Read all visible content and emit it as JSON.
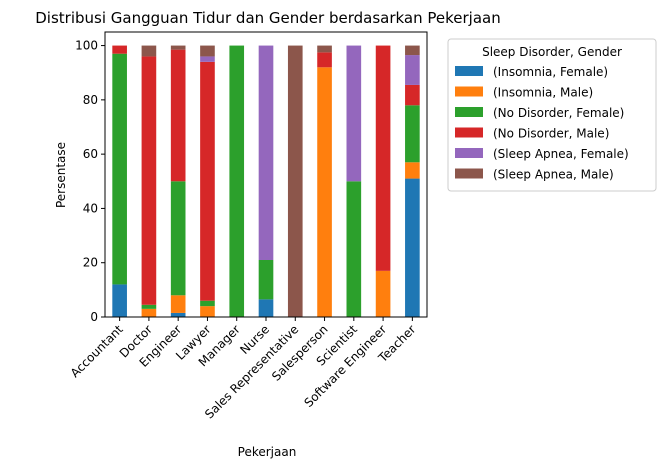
{
  "chart_data": {
    "type": "bar",
    "stacked": true,
    "title": "Distribusi Gangguan Tidur dan Gender berdasarkan Pekerjaan",
    "xlabel": "Pekerjaan",
    "ylabel": "Persentase",
    "ylim": [
      0,
      105
    ],
    "yticks": [
      0,
      20,
      40,
      60,
      80,
      100
    ],
    "grid": false,
    "legend_position": "outside-right",
    "legend_title": "Sleep Disorder, Gender",
    "categories": [
      "Accountant",
      "Doctor",
      "Engineer",
      "Lawyer",
      "Manager",
      "Nurse",
      "Sales Representative",
      "Salesperson",
      "Scientist",
      "Software Engineer",
      "Teacher"
    ],
    "series": [
      {
        "name": "(Insomnia, Female)",
        "color": "#1f77b4",
        "values": [
          12,
          0,
          1.5,
          0,
          0,
          6.5,
          0,
          0,
          0,
          0,
          51
        ]
      },
      {
        "name": "(Insomnia, Male)",
        "color": "#ff7f0e",
        "values": [
          0,
          3,
          6.5,
          4,
          0,
          0,
          0,
          92,
          0,
          17,
          6
        ]
      },
      {
        "name": "(No Disorder, Female)",
        "color": "#2ca02c",
        "values": [
          85,
          1.5,
          42,
          2,
          100,
          14.5,
          0,
          0,
          50,
          0,
          21
        ]
      },
      {
        "name": "(No Disorder, Male)",
        "color": "#d62728",
        "values": [
          3,
          91.5,
          48.5,
          88,
          0,
          0,
          0,
          5.5,
          0,
          83,
          7.5
        ]
      },
      {
        "name": "(Sleep Apnea, Female)",
        "color": "#9467bd",
        "values": [
          0,
          0,
          0,
          2,
          0,
          79,
          0,
          0,
          50,
          0,
          11
        ]
      },
      {
        "name": "(Sleep Apnea, Male)",
        "color": "#8c564b",
        "values": [
          0,
          4,
          1.5,
          4,
          0,
          0,
          100,
          2.5,
          0,
          0,
          3.5
        ]
      }
    ]
  }
}
